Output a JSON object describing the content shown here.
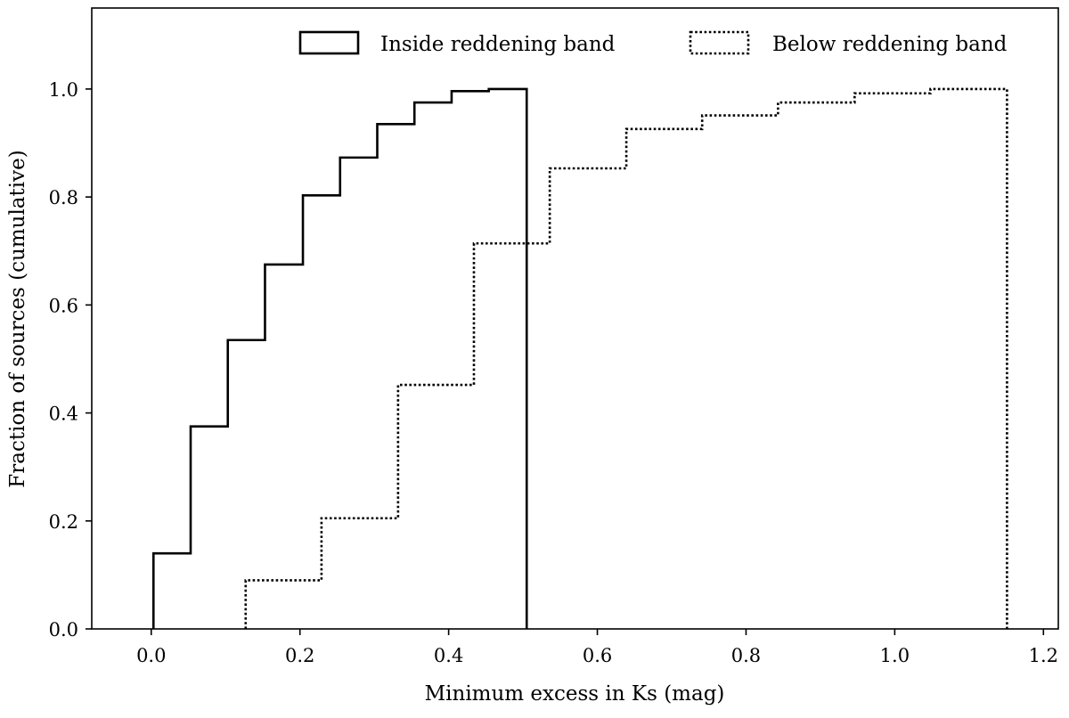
{
  "chart_data": {
    "type": "line",
    "subtype": "cumulative step histogram",
    "xlabel": "Minimum excess in Ks (mag)",
    "ylabel": "Fraction of sources (cumulative)",
    "xlim": [
      -0.08,
      1.22
    ],
    "ylim": [
      0,
      1.15
    ],
    "xticks": [
      0.0,
      0.2,
      0.4,
      0.6,
      0.8,
      1.0,
      1.2
    ],
    "xtick_labels": [
      "0.0",
      "0.2",
      "0.4",
      "0.6",
      "0.8",
      "1.0",
      "1.2"
    ],
    "yticks": [
      0.0,
      0.2,
      0.4,
      0.6,
      0.8,
      1.0
    ],
    "ytick_labels": [
      "0.0",
      "0.2",
      "0.4",
      "0.6",
      "0.8",
      "1.0"
    ],
    "grid": false,
    "legend_position": "top",
    "series": [
      {
        "name": "Inside reddening band",
        "line_style": "solid",
        "color": "#000000",
        "bin_edges": [
          0.003,
          0.053,
          0.103,
          0.153,
          0.204,
          0.254,
          0.304,
          0.354,
          0.404,
          0.454,
          0.505
        ],
        "values": [
          0.14,
          0.375,
          0.535,
          0.675,
          0.803,
          0.873,
          0.935,
          0.975,
          0.996,
          1.0
        ]
      },
      {
        "name": "Below reddening band",
        "line_style": "dotted",
        "color": "#000000",
        "bin_edges": [
          0.127,
          0.229,
          0.332,
          0.434,
          0.536,
          0.639,
          0.741,
          0.843,
          0.946,
          1.048,
          1.151
        ],
        "values": [
          0.09,
          0.205,
          0.452,
          0.714,
          0.853,
          0.926,
          0.951,
          0.975,
          0.992,
          1.0
        ]
      }
    ]
  }
}
